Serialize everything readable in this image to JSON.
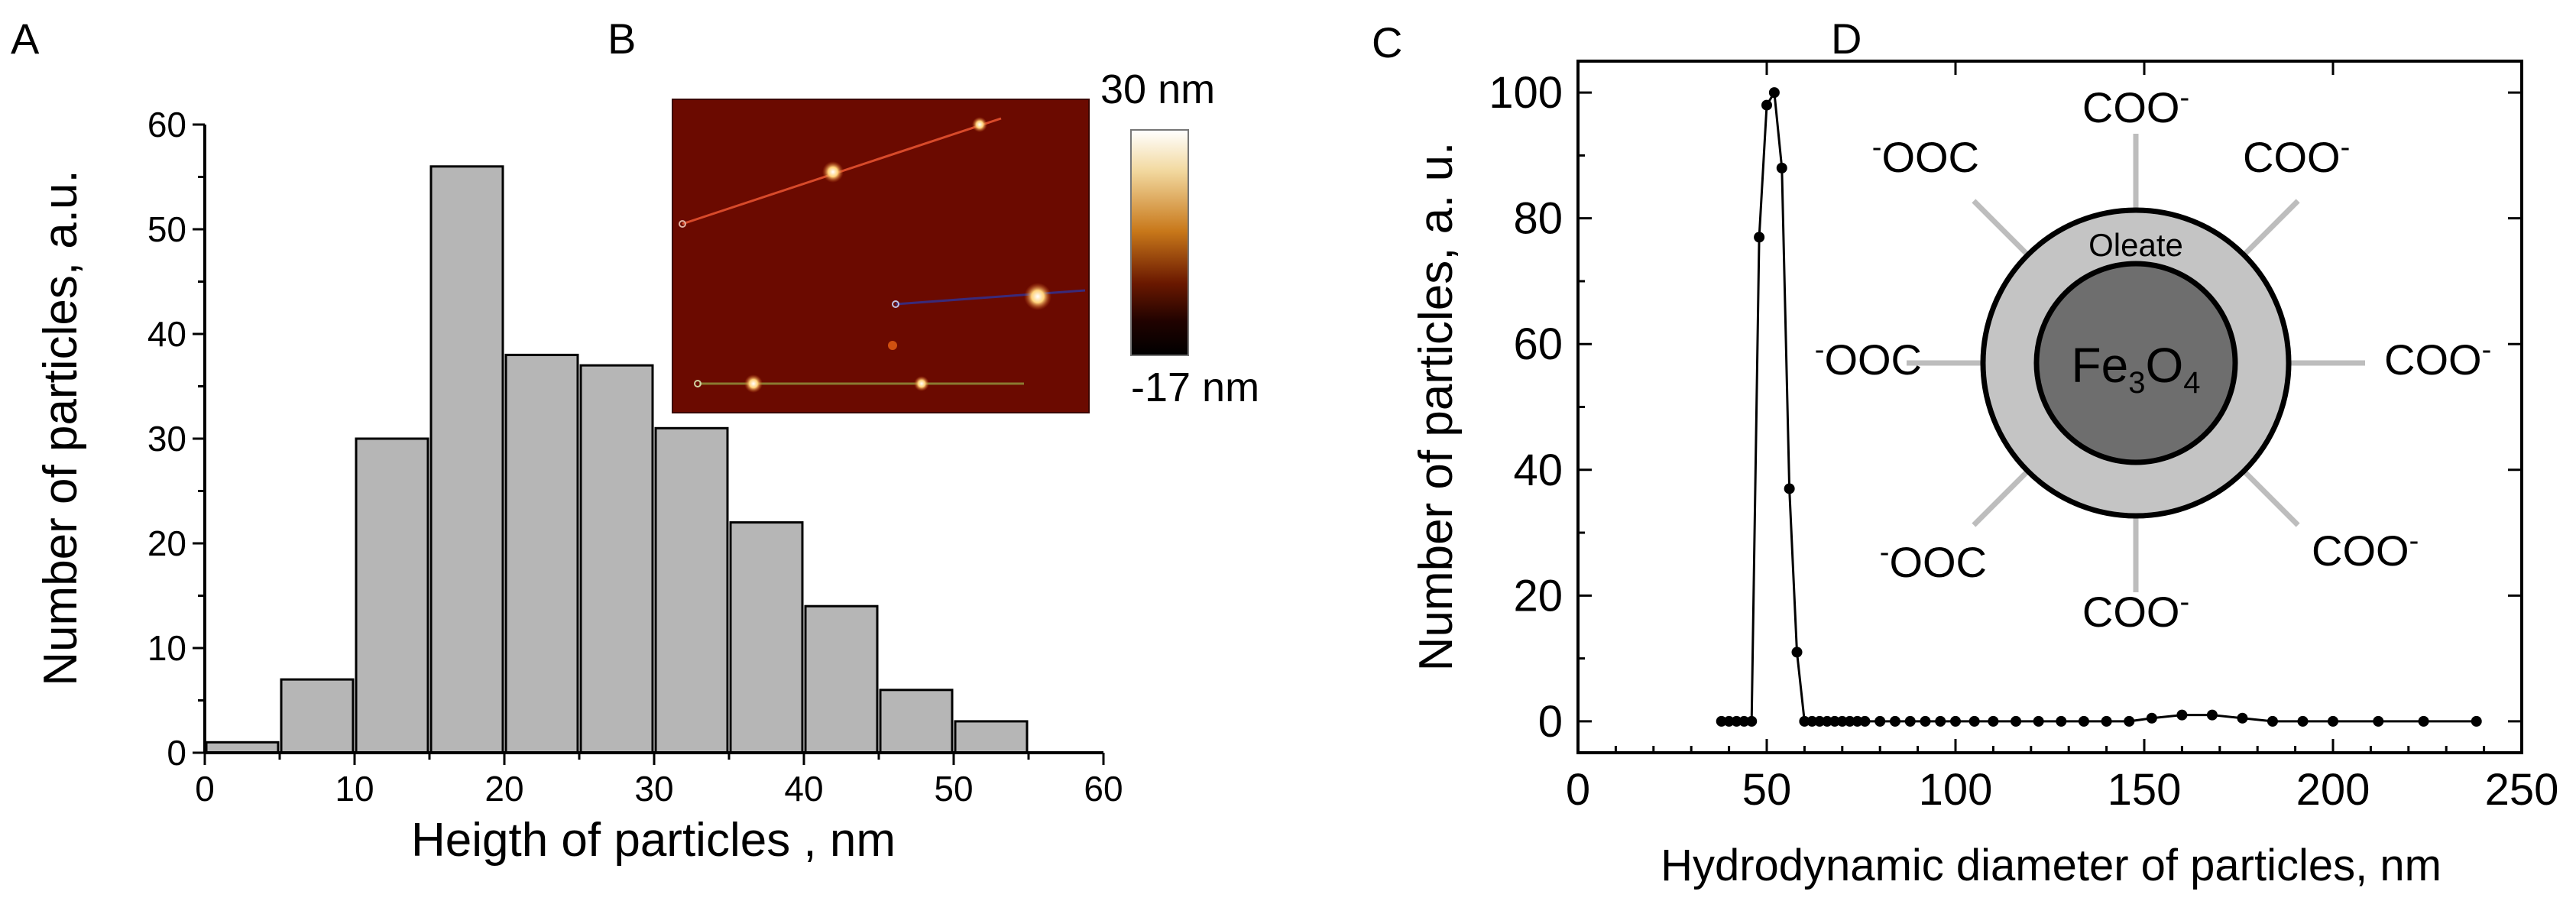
{
  "panel_labels": {
    "a": "A",
    "b": "B",
    "c": "C",
    "d": "D"
  },
  "inset_b": {
    "colorbar_max": "30 nm",
    "colorbar_min": "-17 nm",
    "colors": {
      "background": "#6b0a00",
      "bright": "#fff6d8"
    }
  },
  "schematic_d": {
    "core_label_main": "Fe",
    "core_label_sub1": "3",
    "core_label_mid": "O",
    "core_label_sub2": "4",
    "shell_label": "Oleate",
    "ligands": [
      {
        "base": "COO",
        "charge": "-",
        "side": "right"
      },
      {
        "base": "COO",
        "charge": "-",
        "side": "right"
      },
      {
        "base": "COO",
        "charge": "-",
        "side": "right"
      },
      {
        "base": "COO",
        "charge": "-",
        "side": "right"
      },
      {
        "base": "COO",
        "charge": "-",
        "side": "right"
      },
      {
        "base": "OOC",
        "charge": "-",
        "side": "left"
      },
      {
        "base": "OOC",
        "charge": "-",
        "side": "left"
      },
      {
        "base": "OOC",
        "charge": "-",
        "side": "left"
      }
    ],
    "colors": {
      "core": "#6e6e6e",
      "shell": "#c4c4c4",
      "spoke": "#bdbdbd"
    }
  },
  "chart_data": [
    {
      "id": "A",
      "type": "bar",
      "title": "",
      "xlabel": "Heigth of particles , nm",
      "ylabel": "Number of  particles, a.u.",
      "x_bin_centers": [
        2.5,
        7.5,
        12.5,
        17.5,
        22.5,
        27.5,
        32.5,
        37.5,
        42.5,
        47.5,
        52.5
      ],
      "bin_width": 5,
      "values": [
        1,
        7,
        30,
        56,
        38,
        37,
        31,
        22,
        14,
        6,
        3
      ],
      "xlim": [
        0,
        60
      ],
      "ylim": [
        0,
        60
      ],
      "xticks": [
        0,
        10,
        20,
        30,
        40,
        50,
        60
      ],
      "yticks": [
        0,
        10,
        20,
        30,
        40,
        50,
        60
      ],
      "colors": {
        "bar": "#b6b6b6",
        "edge": "#000000"
      }
    },
    {
      "id": "C",
      "type": "line",
      "title": "",
      "xlabel": "Hydrodynamic diameter of particles, nm",
      "ylabel": "Number of particles, a. u.",
      "x": [
        38,
        40,
        42,
        44,
        46,
        48,
        50,
        52,
        54,
        56,
        58,
        60,
        62,
        64,
        66,
        68,
        70,
        72,
        74,
        76,
        80,
        84,
        88,
        92,
        96,
        100,
        105,
        110,
        116,
        122,
        128,
        134,
        140,
        146,
        152,
        160,
        168,
        176,
        184,
        192,
        200,
        212,
        224,
        238
      ],
      "y": [
        0,
        0,
        0,
        0,
        0,
        77,
        98,
        100,
        88,
        37,
        11,
        0,
        0,
        0,
        0,
        0,
        0,
        0,
        0,
        0,
        0,
        0,
        0,
        0,
        0,
        0,
        0,
        0,
        0,
        0,
        0,
        0,
        0,
        0,
        0.5,
        1,
        1,
        0.5,
        0,
        0,
        0,
        0,
        0,
        0
      ],
      "xlim": [
        0,
        250
      ],
      "ylim": [
        -5,
        105
      ],
      "xticks": [
        0,
        50,
        100,
        150,
        200,
        250
      ],
      "yticks": [
        0,
        20,
        40,
        60,
        80,
        100
      ],
      "colors": {
        "line": "#000000",
        "marker": "#000000"
      }
    }
  ]
}
